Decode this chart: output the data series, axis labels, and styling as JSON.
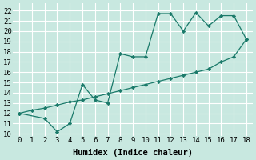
{
  "xlabel": "Humidex (Indice chaleur)",
  "background_color": "#c8e8e0",
  "grid_color": "#ffffff",
  "line_color": "#1a7a6a",
  "xlim": [
    -0.5,
    18.5
  ],
  "ylim": [
    9.8,
    22.7
  ],
  "yticks": [
    10,
    11,
    12,
    13,
    14,
    15,
    16,
    17,
    18,
    19,
    20,
    21,
    22
  ],
  "xticks": [
    0,
    1,
    2,
    3,
    4,
    5,
    6,
    7,
    8,
    9,
    10,
    11,
    12,
    13,
    14,
    15,
    16,
    17,
    18
  ],
  "line1_x": [
    0,
    2,
    3,
    4,
    5,
    6,
    7,
    8,
    9,
    10,
    11,
    12,
    13,
    14,
    15,
    16,
    17,
    18
  ],
  "line1_y": [
    12,
    11.5,
    10.2,
    11.0,
    14.8,
    13.3,
    13.0,
    17.8,
    17.5,
    17.5,
    21.7,
    21.7,
    20.0,
    21.8,
    20.5,
    21.5,
    21.5,
    19.2
  ],
  "line2_x": [
    0,
    1,
    2,
    3,
    4,
    5,
    6,
    7,
    8,
    9,
    10,
    11,
    12,
    13,
    14,
    15,
    16,
    17,
    18
  ],
  "line2_y": [
    12.0,
    12.3,
    12.5,
    12.8,
    13.1,
    13.3,
    13.6,
    13.9,
    14.2,
    14.5,
    14.8,
    15.1,
    15.4,
    15.7,
    16.0,
    16.3,
    17.0,
    17.5,
    19.2
  ],
  "font_family": "monospace",
  "tick_fontsize": 6.5,
  "xlabel_fontsize": 7.5
}
